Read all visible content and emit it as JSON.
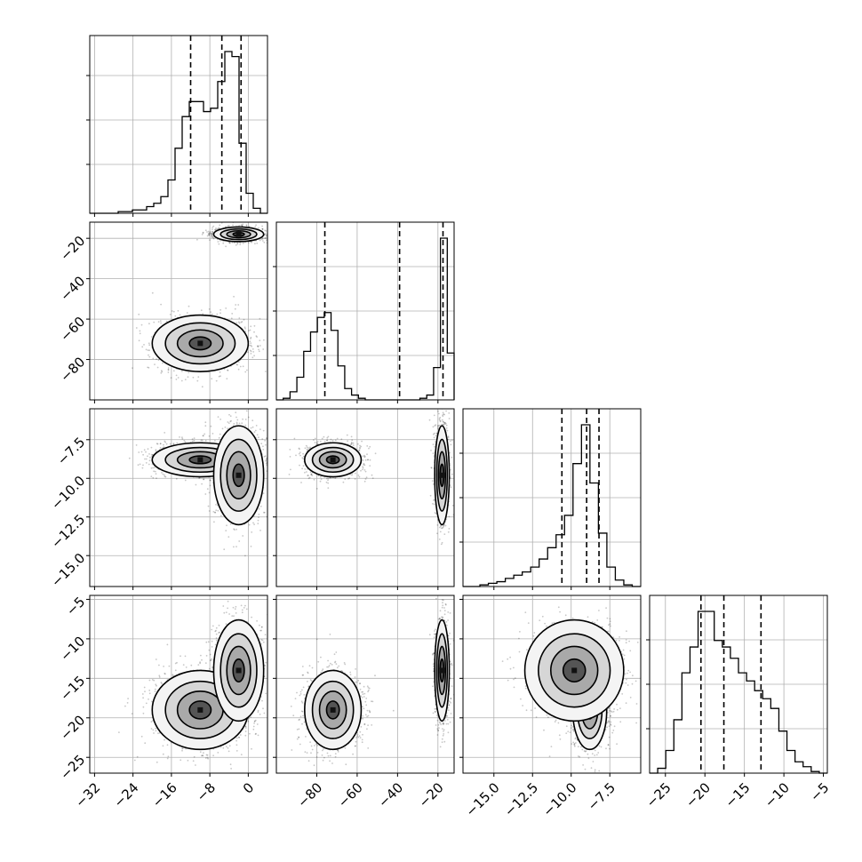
{
  "chart_data": {
    "type": "corner",
    "parameters": [
      {
        "index": 0,
        "range": [
          -33,
          4
        ],
        "ticks": [
          -32,
          -24,
          -16,
          -8,
          0
        ],
        "tick_labels": [
          "−32",
          "−24",
          "−16",
          "−8",
          "0"
        ],
        "quantiles": [
          -12.0,
          -5.5,
          -1.5
        ],
        "hist_edges_range": [
          -33,
          4
        ],
        "hist_counts": [
          0,
          0,
          0,
          0,
          1,
          1,
          2,
          2,
          4,
          6,
          10,
          20,
          39,
          58,
          67,
          67,
          61,
          63,
          79,
          97,
          94,
          42,
          12,
          3,
          0
        ]
      },
      {
        "index": 1,
        "range": [
          -100,
          -12
        ],
        "ticks": [
          -80,
          -60,
          -40,
          -20
        ],
        "tick_labels": [
          "−80",
          "−60",
          "−40",
          "−20"
        ],
        "quantiles": [
          -76,
          -39,
          -17.5
        ],
        "hist_edges_range": [
          -100,
          -12
        ],
        "hist_counts": [
          0,
          1,
          5,
          14,
          30,
          42,
          51,
          54,
          43,
          21,
          7,
          3,
          1,
          0,
          0,
          0,
          0,
          0,
          0,
          0,
          0,
          1,
          3,
          20,
          100,
          29
        ]
      },
      {
        "index": 2,
        "range": [
          -17,
          -5.5
        ],
        "ticks": [
          -15.0,
          -12.5,
          -10.0,
          -7.5
        ],
        "tick_labels": [
          "−15.0",
          "−12.5",
          "−10.0",
          "−7.5"
        ],
        "quantiles": [
          -10.6,
          -9.0,
          -8.2
        ],
        "hist_edges_range": [
          -17,
          -5.5
        ],
        "hist_counts": [
          0,
          0,
          1,
          2,
          3,
          5,
          7,
          9,
          12,
          17,
          24,
          32,
          44,
          76,
          100,
          64,
          33,
          12,
          4,
          1,
          0
        ]
      },
      {
        "index": 3,
        "range": [
          -27,
          -4.5
        ],
        "ticks": [
          -25,
          -20,
          -15,
          -10,
          -5
        ],
        "tick_labels": [
          "−25",
          "−20",
          "−15",
          "−10",
          "−5"
        ],
        "quantiles": [
          -20.5,
          -17.6,
          -12.9
        ],
        "hist_edges_range": [
          -27,
          -4.5
        ],
        "hist_counts": [
          0,
          3,
          14,
          33,
          62,
          78,
          100,
          100,
          82,
          78,
          71,
          62,
          57,
          51,
          46,
          40,
          26,
          14,
          7,
          4,
          1,
          0
        ]
      }
    ],
    "left_axis_ticks": [
      {
        "row": 0,
        "ticks": [],
        "note": "count axis, unlabeled"
      },
      {
        "row": 1,
        "ticks": [
          -20,
          -40,
          -60,
          -80
        ],
        "tick_labels": [
          "−20",
          "−40",
          "−60",
          "−80"
        ]
      },
      {
        "row": 2,
        "ticks": [
          -7.5,
          -10.0,
          -12.5,
          -15.0
        ],
        "tick_labels": [
          "−7.5",
          "−10.0",
          "−12.5",
          "−15.0"
        ]
      },
      {
        "row": 3,
        "ticks": [
          -5,
          -10,
          -15,
          -20,
          -25
        ],
        "tick_labels": [
          "−5",
          "−10",
          "−15",
          "−20",
          "−25"
        ]
      }
    ],
    "modes": {
      "p0": [
        -10,
        -2
      ],
      "p1": [
        -72,
        -18
      ],
      "p2": [
        -8.8,
        -9.8
      ],
      "p3": [
        -19,
        -14
      ]
    },
    "grid": true,
    "xlabel": "",
    "ylabel": "",
    "title": ""
  }
}
